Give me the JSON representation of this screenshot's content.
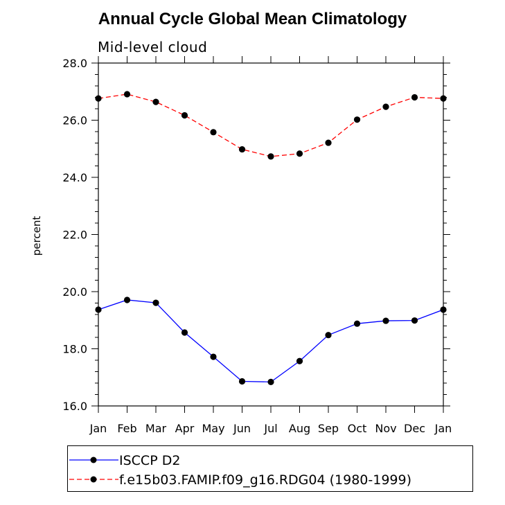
{
  "title": "Annual Cycle Global Mean Climatology",
  "subtitle": "Mid-level cloud",
  "chart_data": {
    "type": "line",
    "title": "Annual Cycle Global Mean Climatology",
    "subtitle": "Mid-level cloud",
    "xlabel": "",
    "ylabel": "percent",
    "categories": [
      "Jan",
      "Feb",
      "Mar",
      "Apr",
      "May",
      "Jun",
      "Jul",
      "Aug",
      "Sep",
      "Oct",
      "Nov",
      "Dec",
      "Jan"
    ],
    "ylim": [
      16.0,
      28.0
    ],
    "yticks": [
      "16.0",
      "18.0",
      "20.0",
      "22.0",
      "24.0",
      "26.0",
      "28.0"
    ],
    "grid": false,
    "legend_position": "bottom",
    "series": [
      {
        "name": "ISCCP D2",
        "color": "#0000ff",
        "line_style": "solid",
        "marker": "filled-circle",
        "values": [
          19.37,
          19.71,
          19.61,
          18.57,
          17.72,
          16.86,
          16.84,
          17.57,
          18.48,
          18.88,
          18.98,
          18.99,
          19.37
        ]
      },
      {
        "name": "f.e15b03.FAMIP.f09_g16.RDG04 (1980-1999)",
        "color": "#ff0000",
        "line_style": "dashed",
        "marker": "filled-circle",
        "values": [
          26.76,
          26.91,
          26.64,
          26.17,
          25.58,
          24.98,
          24.73,
          24.83,
          25.21,
          26.02,
          26.47,
          26.8,
          26.76
        ]
      }
    ]
  }
}
